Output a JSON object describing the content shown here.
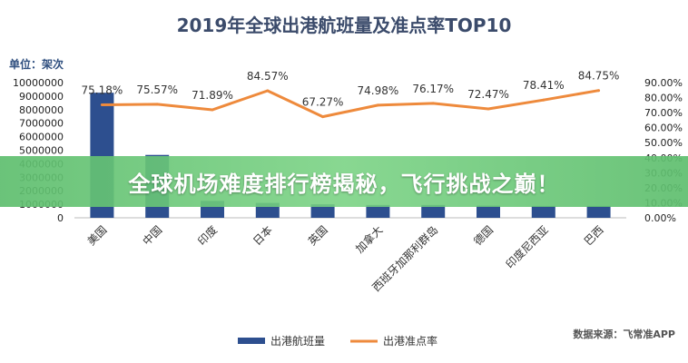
{
  "banner": {
    "text": "全球机场难度排行榜揭秘，飞行挑战之巅！"
  },
  "source": "数据来源：飞常准APP",
  "unit": "单位：架次",
  "chart_data": {
    "type": "bar",
    "title": "2019年全球出港航班量及准点率TOP10",
    "categories": [
      "美国",
      "中国",
      "印度",
      "日本",
      "英国",
      "加拿大",
      "西班牙加那利群岛",
      "德国",
      "印度尼西亚",
      "巴西"
    ],
    "series": [
      {
        "name": "出港航班量",
        "type": "bar",
        "axis": "left",
        "values": [
          9250000,
          4650000,
          1250000,
          1100000,
          1000000,
          950000,
          950000,
          900000,
          880000,
          880000
        ]
      },
      {
        "name": "出港准点率",
        "type": "line",
        "axis": "right",
        "values": [
          75.18,
          75.57,
          71.89,
          84.57,
          67.27,
          74.98,
          76.17,
          72.47,
          78.41,
          84.75
        ],
        "labels": [
          "75.18%",
          "75.57%",
          "71.89%",
          "84.57%",
          "67.27%",
          "74.98%",
          "76.17%",
          "72.47%",
          "78.41%",
          "84.75%"
        ]
      }
    ],
    "ylim_left": [
      0,
      10000000
    ],
    "ylim_right": [
      0,
      90
    ],
    "left_ticks": [
      "0",
      "1000000",
      "2000000",
      "3000000",
      "4000000",
      "5000000",
      "6000000",
      "7000000",
      "8000000",
      "9000000",
      "10000000"
    ],
    "right_ticks": [
      "0.00%",
      "10.00%",
      "20.00%",
      "30.00%",
      "40.00%",
      "50.00%",
      "60.00%",
      "70.00%",
      "80.00%",
      "90.00%"
    ],
    "colors": {
      "bar": "#2d4f8f",
      "line": "#ee8a3c"
    },
    "legend_position": "bottom",
    "grid": false
  }
}
